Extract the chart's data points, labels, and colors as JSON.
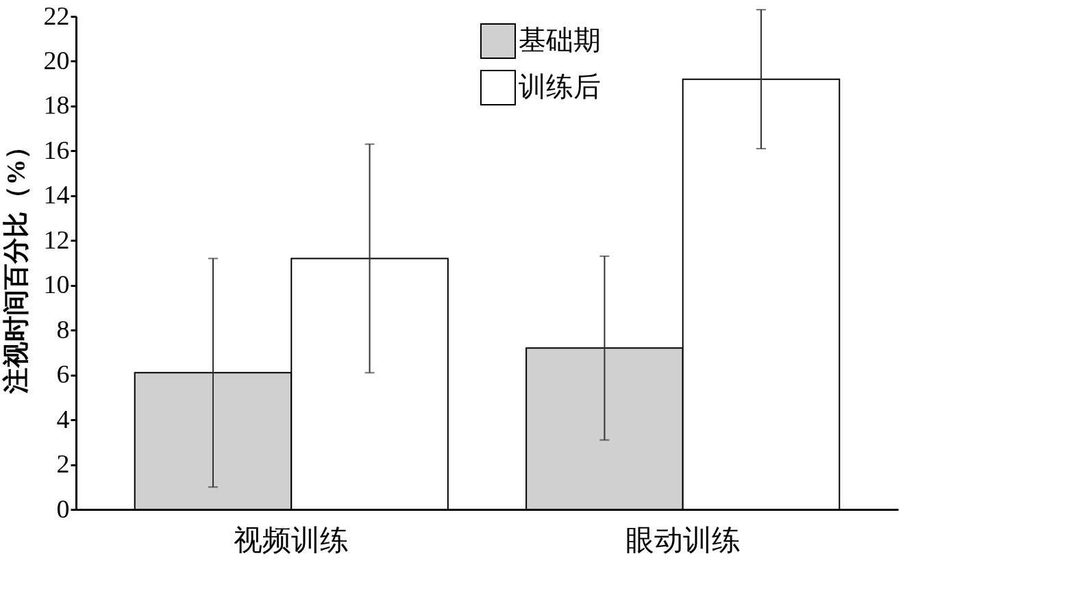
{
  "chart_data": {
    "type": "bar",
    "ylabel": "注视时间百分比（%）",
    "categories": [
      "视频训练",
      "眼动训练"
    ],
    "series": [
      {
        "name": "基础期",
        "color": "#d0d0d0",
        "values": [
          6.1,
          7.2
        ],
        "errors": [
          5.1,
          4.1
        ]
      },
      {
        "name": "训练后",
        "color": "#ffffff",
        "values": [
          11.2,
          19.2
        ],
        "errors": [
          5.1,
          3.1
        ]
      }
    ],
    "ylim": [
      0,
      22
    ],
    "yticks": [
      0,
      2,
      4,
      6,
      8,
      10,
      12,
      14,
      16,
      18,
      20,
      22
    ],
    "grid": false,
    "legend": "top right"
  }
}
